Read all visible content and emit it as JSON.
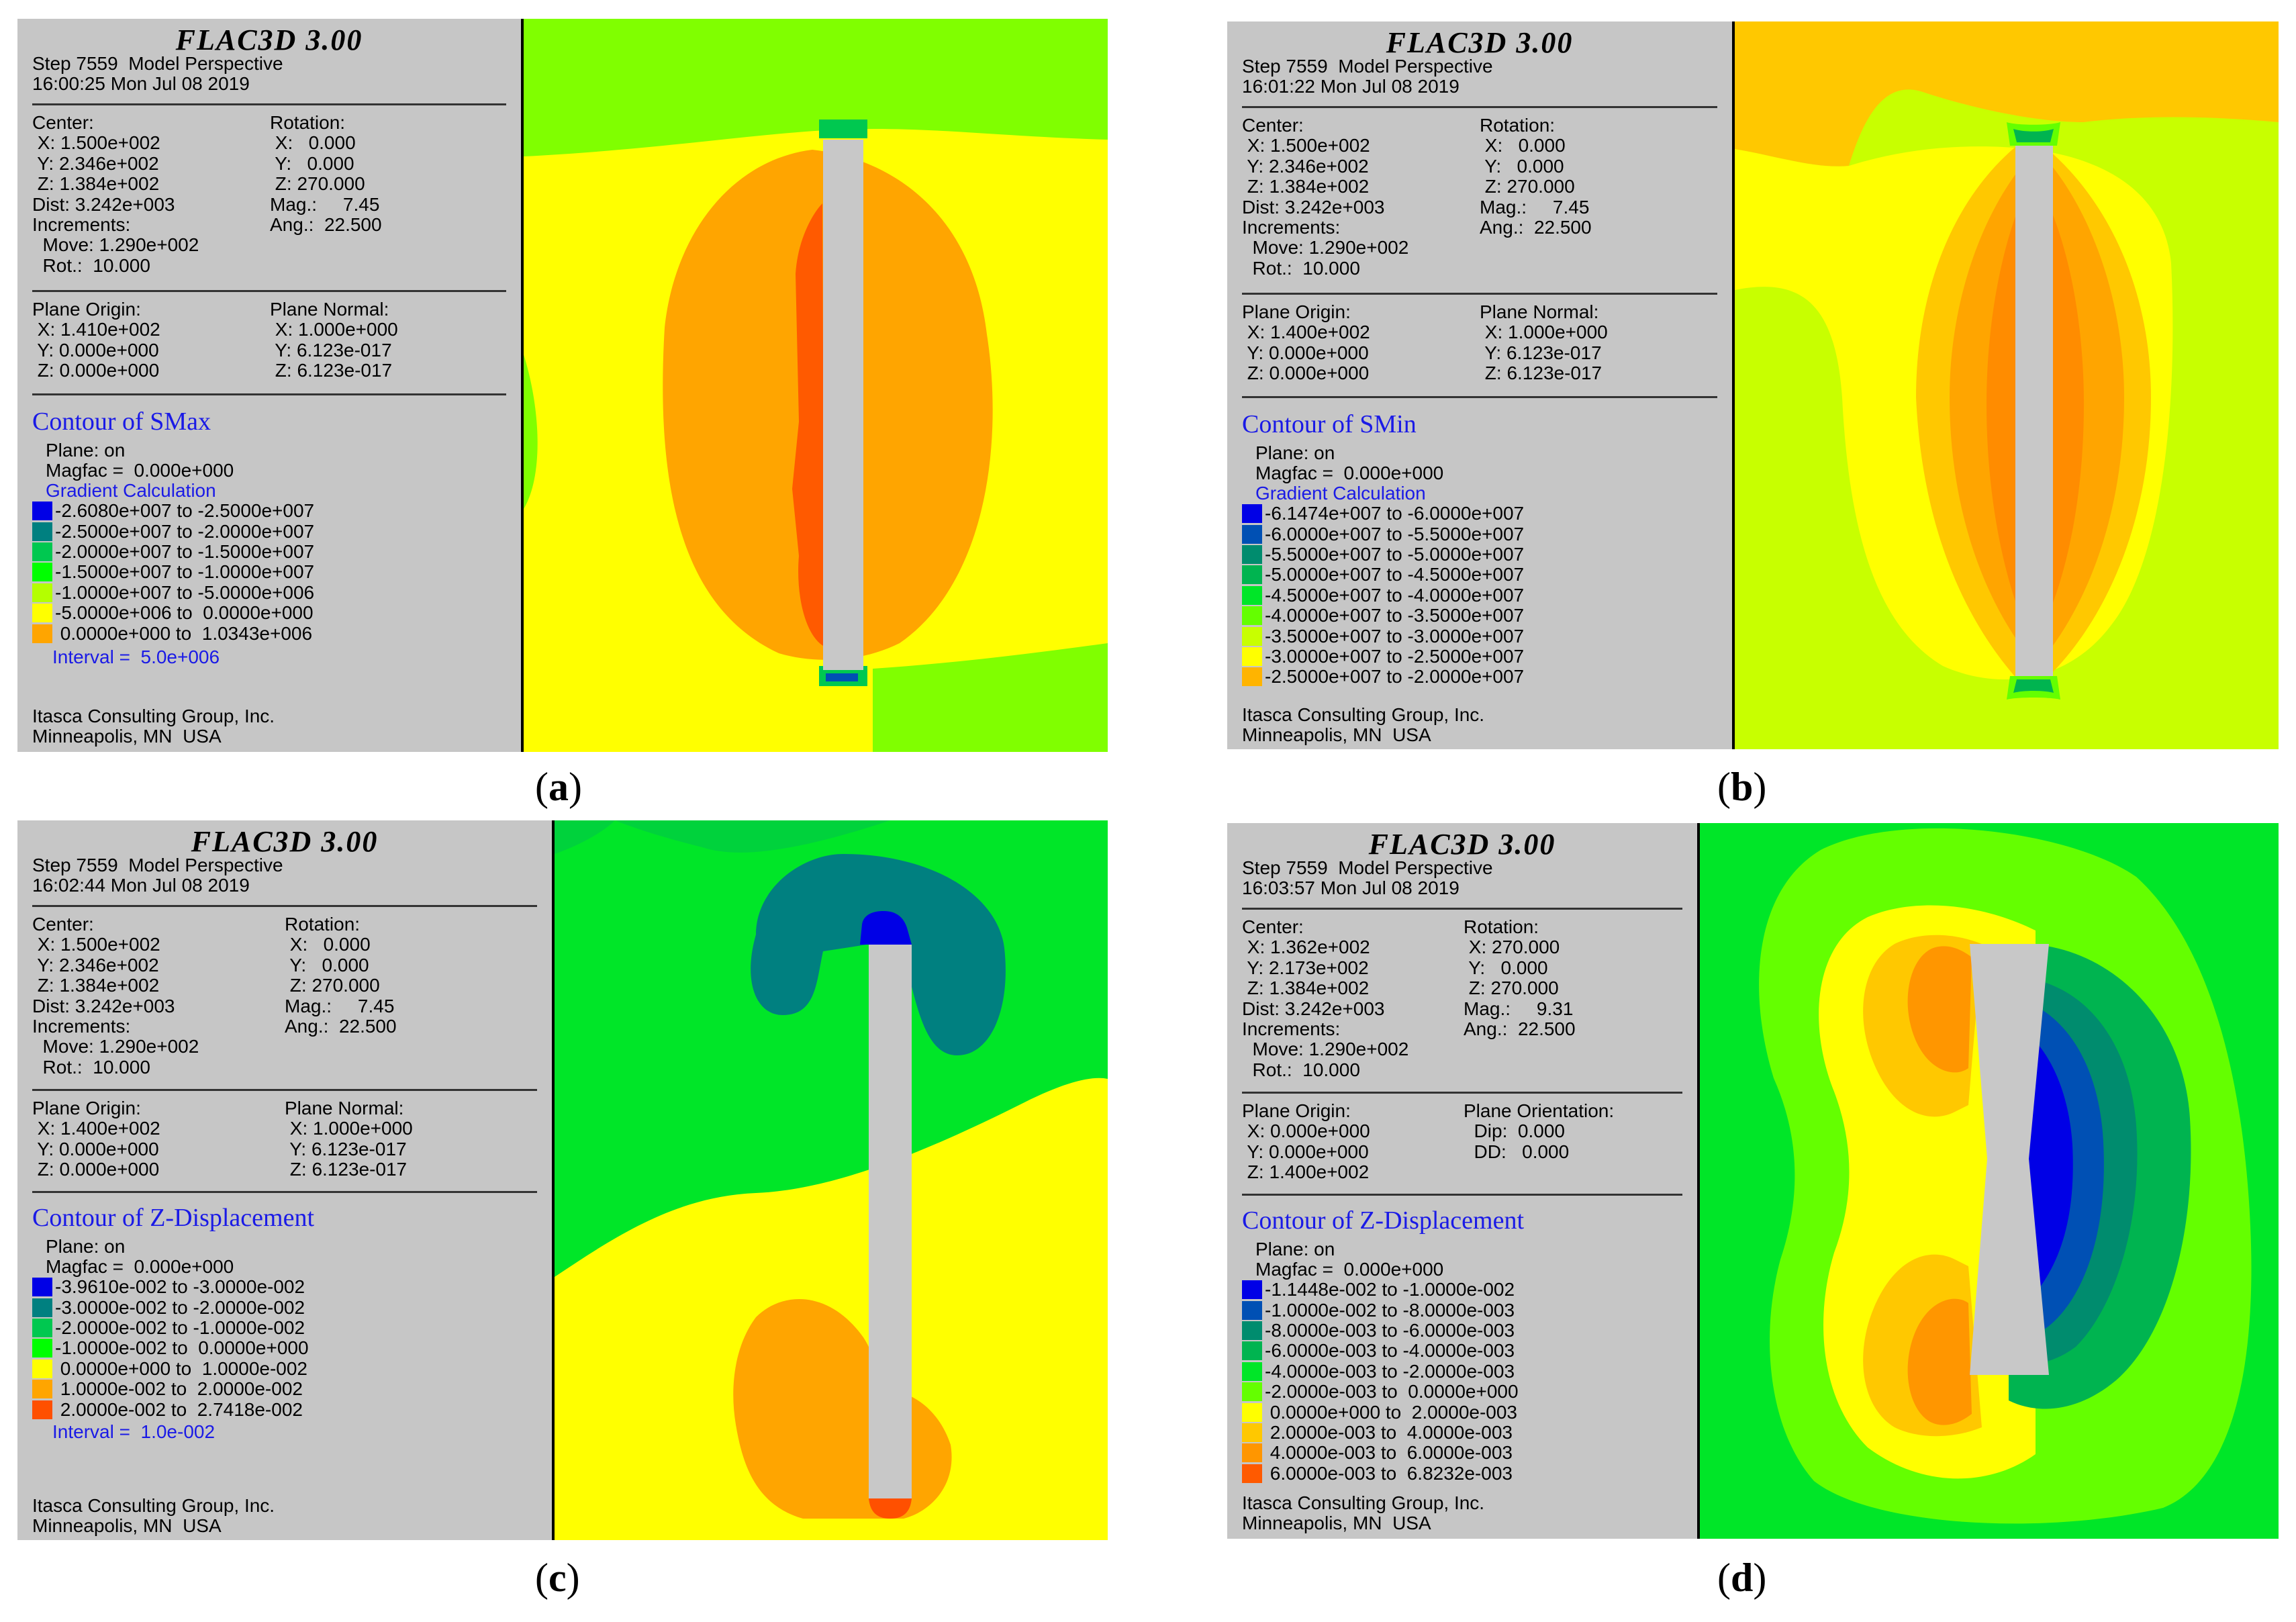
{
  "panels": [
    {
      "software": "FLAC3D 3.00",
      "step": "Step 7559  Model Perspective",
      "time": "16:00:25 Mon Jul 08 2019",
      "view_left": "Center:\n X: 1.500e+002\n Y: 2.346e+002\n Z: 1.384e+002\nDist: 3.242e+003\nIncrements:\n  Move: 1.290e+002\n  Rot.:  10.000",
      "view_right": "Rotation:\n X:   0.000\n Y:   0.000\n Z: 270.000\nMag.:     7.45\nAng.:  22.500",
      "plane_left": "Plane Origin:\n X: 1.410e+002\n Y: 0.000e+000\n Z: 0.000e+000",
      "plane_right": "Plane Normal:\n X: 1.000e+000\n Y: 6.123e-017\n Z: 6.123e-017",
      "contour_title": "Contour of SMax",
      "plane_on": "Plane: on",
      "magfac": "Magfac =  0.000e+000",
      "gradient": "Gradient Calculation",
      "legend": [
        {
          "color": "#0000e6",
          "label": "-2.6080e+007 to -2.5000e+007"
        },
        {
          "color": "#008080",
          "label": "-2.5000e+007 to -2.0000e+007"
        },
        {
          "color": "#00c850",
          "label": "-2.0000e+007 to -1.5000e+007"
        },
        {
          "color": "#00ff00",
          "label": "-1.5000e+007 to -1.0000e+007"
        },
        {
          "color": "#b4ff00",
          "label": "-1.0000e+007 to -5.0000e+006"
        },
        {
          "color": "#ffff00",
          "label": "-5.0000e+006 to  0.0000e+000"
        },
        {
          "color": "#ffa500",
          "label": " 0.0000e+000 to  1.0343e+006"
        }
      ],
      "interval": "Interval =  5.0e+006",
      "company": "Itasca Consulting Group, Inc.",
      "location": "Minneapolis, MN  USA",
      "caption_open": "(",
      "caption_letter": "a",
      "caption_close": ")"
    },
    {
      "software": "FLAC3D 3.00",
      "step": "Step 7559  Model Perspective",
      "time": "16:01:22 Mon Jul 08 2019",
      "view_left": "Center:\n X: 1.500e+002\n Y: 2.346e+002\n Z: 1.384e+002\nDist: 3.242e+003\nIncrements:\n  Move: 1.290e+002\n  Rot.:  10.000",
      "view_right": "Rotation:\n X:   0.000\n Y:   0.000\n Z: 270.000\nMag.:     7.45\nAng.:  22.500",
      "plane_left": "Plane Origin:\n X: 1.400e+002\n Y: 0.000e+000\n Z: 0.000e+000",
      "plane_right": "Plane Normal:\n X: 1.000e+000\n Y: 6.123e-017\n Z: 6.123e-017",
      "contour_title": "Contour of SMin",
      "plane_on": "Plane: on",
      "magfac": "Magfac =  0.000e+000",
      "gradient": "Gradient Calculation",
      "legend": [
        {
          "color": "#0000e6",
          "label": "-6.1474e+007 to -6.0000e+007"
        },
        {
          "color": "#0050b4",
          "label": "-6.0000e+007 to -5.5000e+007"
        },
        {
          "color": "#008c6e",
          "label": "-5.5000e+007 to -5.0000e+007"
        },
        {
          "color": "#00b450",
          "label": "-5.0000e+007 to -4.5000e+007"
        },
        {
          "color": "#00e628",
          "label": "-4.5000e+007 to -4.0000e+007"
        },
        {
          "color": "#64ff00",
          "label": "-4.0000e+007 to -3.5000e+007"
        },
        {
          "color": "#c8ff00",
          "label": "-3.5000e+007 to -3.0000e+007"
        },
        {
          "color": "#ffff00",
          "label": "-3.0000e+007 to -2.5000e+007"
        },
        {
          "color": "#ffb400",
          "label": "-2.5000e+007 to -2.0000e+007"
        }
      ],
      "interval": "",
      "company": "Itasca Consulting Group, Inc.",
      "location": "Minneapolis, MN  USA",
      "caption_open": "(",
      "caption_letter": "b",
      "caption_close": ")"
    },
    {
      "software": "FLAC3D 3.00",
      "step": "Step 7559  Model Perspective",
      "time": "16:02:44 Mon Jul 08 2019",
      "view_left": "Center:\n X: 1.500e+002\n Y: 2.346e+002\n Z: 1.384e+002\nDist: 3.242e+003\nIncrements:\n  Move: 1.290e+002\n  Rot.:  10.000",
      "view_right": "Rotation:\n X:   0.000\n Y:   0.000\n Z: 270.000\nMag.:     7.45\nAng.:  22.500",
      "plane_left": "Plane Origin:\n X: 1.400e+002\n Y: 0.000e+000\n Z: 0.000e+000",
      "plane_right": "Plane Normal:\n X: 1.000e+000\n Y: 6.123e-017\n Z: 6.123e-017",
      "contour_title": "Contour of Z-Displacement",
      "plane_on": "Plane: on",
      "magfac": "Magfac =  0.000e+000",
      "gradient": "",
      "legend": [
        {
          "color": "#0000e6",
          "label": "-3.9610e-002 to -3.0000e-002"
        },
        {
          "color": "#008080",
          "label": "-3.0000e-002 to -2.0000e-002"
        },
        {
          "color": "#00c850",
          "label": "-2.0000e-002 to -1.0000e-002"
        },
        {
          "color": "#00ff00",
          "label": "-1.0000e-002 to  0.0000e+000"
        },
        {
          "color": "#ffff00",
          "label": " 0.0000e+000 to  1.0000e-002"
        },
        {
          "color": "#ffa500",
          "label": " 1.0000e-002 to  2.0000e-002"
        },
        {
          "color": "#ff5000",
          "label": " 2.0000e-002 to  2.7418e-002"
        }
      ],
      "interval": "Interval =  1.0e-002",
      "company": "Itasca Consulting Group, Inc.",
      "location": "Minneapolis, MN  USA",
      "caption_open": "(",
      "caption_letter": "c",
      "caption_close": ")"
    },
    {
      "software": "FLAC3D 3.00",
      "step": "Step 7559  Model Perspective",
      "time": "16:03:57 Mon Jul 08 2019",
      "view_left": "Center:\n X: 1.362e+002\n Y: 2.173e+002\n Z: 1.384e+002\nDist: 3.242e+003\nIncrements:\n  Move: 1.290e+002\n  Rot.:  10.000",
      "view_right": "Rotation:\n X: 270.000\n Y:   0.000\n Z: 270.000\nMag.:     9.31\nAng.:  22.500",
      "plane_left": "Plane Origin:\n X: 0.000e+000\n Y: 0.000e+000\n Z: 1.400e+002",
      "plane_right": "Plane Orientation:\n  Dip:  0.000\n  DD:   0.000",
      "contour_title": "Contour of Z-Displacement",
      "plane_on": "Plane: on",
      "magfac": "Magfac =  0.000e+000",
      "gradient": "",
      "legend": [
        {
          "color": "#0000e6",
          "label": "-1.1448e-002 to -1.0000e-002"
        },
        {
          "color": "#0050b4",
          "label": "-1.0000e-002 to -8.0000e-003"
        },
        {
          "color": "#008c6e",
          "label": "-8.0000e-003 to -6.0000e-003"
        },
        {
          "color": "#00b450",
          "label": "-6.0000e-003 to -4.0000e-003"
        },
        {
          "color": "#00e628",
          "label": "-4.0000e-003 to -2.0000e-003"
        },
        {
          "color": "#64ff00",
          "label": "-2.0000e-003 to  0.0000e+000"
        },
        {
          "color": "#ffff00",
          "label": " 0.0000e+000 to  2.0000e-003"
        },
        {
          "color": "#ffc800",
          "label": " 2.0000e-003 to  4.0000e-003"
        },
        {
          "color": "#ff9600",
          "label": " 4.0000e-003 to  6.0000e-003"
        },
        {
          "color": "#ff5a00",
          "label": " 6.0000e-003 to  6.8232e-003"
        }
      ],
      "interval": "",
      "company": "Itasca Consulting Group, Inc.",
      "location": "Minneapolis, MN  USA",
      "caption_open": "(",
      "caption_letter": "d",
      "caption_close": ")"
    }
  ]
}
